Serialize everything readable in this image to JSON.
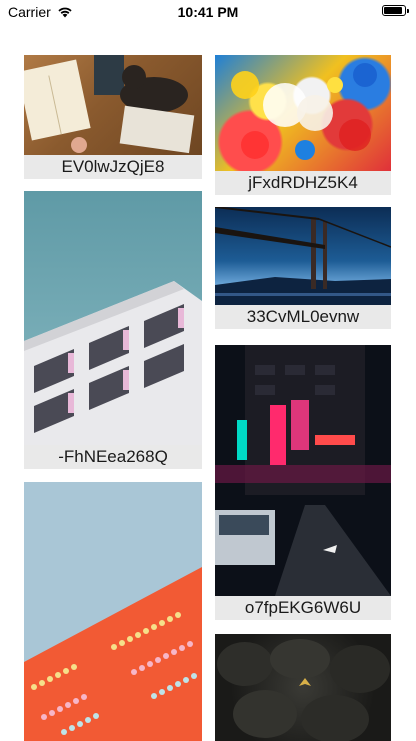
{
  "status_bar": {
    "carrier": "Carrier",
    "time": "10:41 PM",
    "battery_level": 0.95
  },
  "cards": [
    {
      "caption": "EV0lwJzQjE8",
      "photo": "reading-books-cat-on-desk"
    },
    {
      "caption": "jFxdRDHZ5K4",
      "photo": "colorful-abstract-paint"
    },
    {
      "caption": "-FhNEea268Q",
      "photo": "white-building-balconies"
    },
    {
      "caption": "33CvML0evnw",
      "photo": "golden-gate-bridge-night"
    },
    {
      "caption": "o7fpEKG6W6U",
      "photo": "neon-city-street-night"
    },
    {
      "caption": "",
      "photo": "orange-wall-colored-balls"
    },
    {
      "caption": "",
      "photo": "dark-rocks-leaf"
    }
  ],
  "colors": {
    "caption_bg": "#e9e9e9",
    "caption_text": "#1a1a1a",
    "background": "#ffffff"
  }
}
